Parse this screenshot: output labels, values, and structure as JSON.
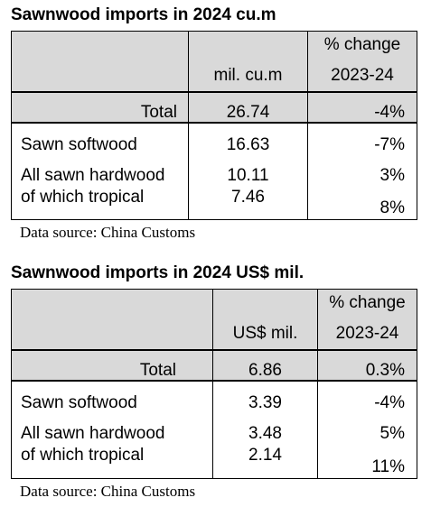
{
  "tables": [
    {
      "title": "Sawnwood imports in 2024 cu.m",
      "value_header": "mil. cu.m",
      "change_header_1": "% change",
      "change_header_2": "2023-24",
      "total_label": "Total",
      "total_value": "26.74",
      "total_change": "-4%",
      "row1_label": "Sawn softwood",
      "row1_value": "16.63",
      "row1_change": "-7%",
      "row2_label": "All sawn hardwood",
      "row2_value": "10.11",
      "row2_change": "3%",
      "row3_label": "of which tropical",
      "row3_value": "7.46",
      "row3_change": "8%",
      "source": "Data source: China Customs"
    },
    {
      "title": "Sawnwood imports in 2024 US$ mil.",
      "value_header": "US$ mil.",
      "change_header_1": "% change",
      "change_header_2": "2023-24",
      "total_label": "Total",
      "total_value": "6.86",
      "total_change": "0.3%",
      "row1_label": "Sawn softwood",
      "row1_value": "3.39",
      "row1_change": "-4%",
      "row2_label": "All sawn hardwood",
      "row2_value": "3.48",
      "row2_change": "5%",
      "row3_label": "of which tropical",
      "row3_value": "2.14",
      "row3_change": "11%",
      "source": "Data source: China Customs"
    }
  ],
  "colors": {
    "shade": "#d9d9d9",
    "border": "#000000"
  }
}
